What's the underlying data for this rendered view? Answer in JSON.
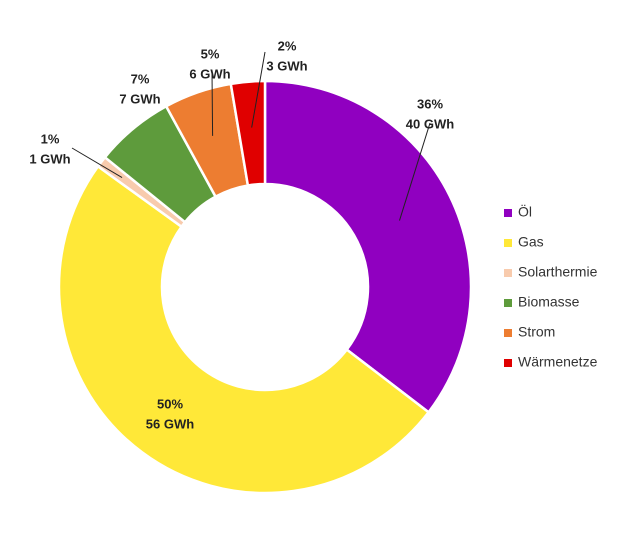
{
  "chart_data": {
    "type": "donut",
    "categories": [
      "Öl",
      "Gas",
      "Solarthermie",
      "Biomasse",
      "Strom",
      "Wärmenetze"
    ],
    "values": [
      40,
      56,
      1,
      7,
      6,
      3
    ],
    "value_labels": [
      "40 GWh",
      "56 GWh",
      "1 GWh",
      "7 GWh",
      "6 GWh",
      "3 GWh"
    ],
    "percentages": [
      36,
      50,
      1,
      7,
      5,
      2
    ],
    "percentage_labels": [
      "36%",
      "50%",
      "1%",
      "7%",
      "5%",
      "2%"
    ],
    "colors": [
      "#9000C0",
      "#FFE838",
      "#F8CBAD",
      "#5E9B3C",
      "#ED7D31",
      "#E00000"
    ],
    "legend": "right"
  }
}
